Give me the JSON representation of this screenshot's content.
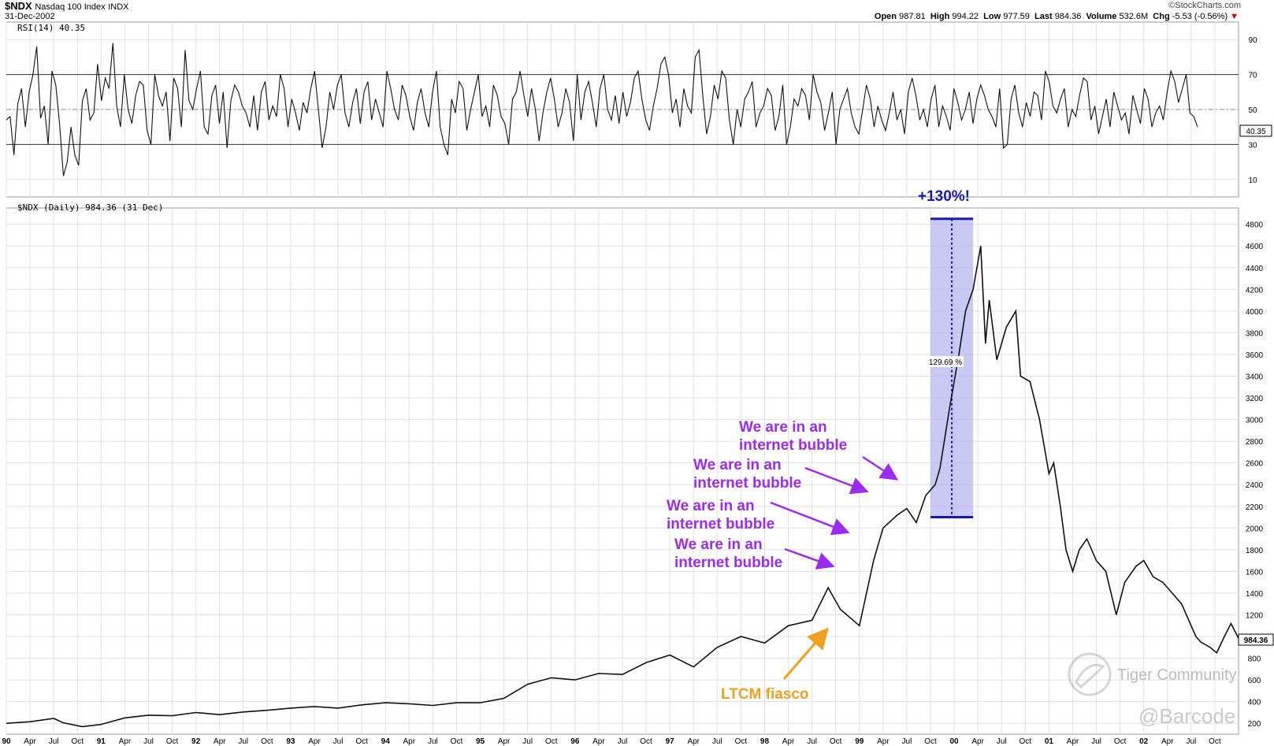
{
  "header": {
    "symbol": "$NDX",
    "name": "Nasdaq 100 Index",
    "exchange": "INDX",
    "date": "31-Dec-2002",
    "credit": "©StockCharts.com",
    "open_label": "Open",
    "open_value": "987.81",
    "high_label": "High",
    "high_value": "994.22",
    "low_label": "Low",
    "low_value": "977.59",
    "last_label": "Last",
    "last_value": "984.36",
    "volume_label": "Volume",
    "volume_value": "532.6M",
    "chg_label": "Chg",
    "chg_value": "-5.53 (-0.56%)"
  },
  "chart_data": [
    {
      "type": "line",
      "panel": "rsi",
      "label": "RSI(14) 40.35",
      "current_value_tag": "40.35",
      "y_ticks": [
        10,
        30,
        50,
        70,
        90
      ],
      "ylim": [
        0,
        100
      ],
      "reference_lines": [
        30,
        50,
        70
      ],
      "grid": true,
      "series": [
        {
          "values": [
            44,
            46,
            24,
            53,
            62,
            40,
            60,
            70,
            86,
            45,
            52,
            30,
            72,
            64,
            42,
            12,
            20,
            40,
            24,
            18,
            55,
            62,
            44,
            48,
            76,
            55,
            68,
            62,
            88,
            52,
            40,
            70,
            50,
            42,
            58,
            66,
            64,
            38,
            30,
            70,
            58,
            52,
            60,
            32,
            68,
            62,
            40,
            84,
            55,
            50,
            62,
            72,
            40,
            36,
            58,
            64,
            42,
            60,
            28,
            55,
            64,
            60,
            52,
            48,
            40,
            58,
            38,
            60,
            66,
            44,
            52,
            46,
            70,
            62,
            40,
            56,
            48,
            38,
            54,
            48,
            62,
            72,
            50,
            28,
            40,
            60,
            50,
            64,
            70,
            48,
            40,
            54,
            62,
            42,
            60,
            66,
            44,
            56,
            48,
            40,
            72,
            62,
            50,
            44,
            64,
            58,
            46,
            38,
            54,
            62,
            48,
            40,
            60,
            72,
            40,
            30,
            24,
            56,
            48,
            66,
            62,
            38,
            50,
            60,
            70,
            46,
            52,
            40,
            64,
            58,
            46,
            42,
            30,
            56,
            60,
            72,
            58,
            46,
            62,
            50,
            32,
            48,
            60,
            68,
            56,
            40,
            48,
            62,
            54,
            32,
            70,
            44,
            60,
            66,
            54,
            40,
            62,
            70,
            50,
            44,
            58,
            42,
            60,
            46,
            54,
            68,
            72,
            56,
            44,
            38,
            52,
            62,
            76,
            80,
            70,
            48,
            56,
            40,
            62,
            52,
            48,
            80,
            84,
            58,
            36,
            46,
            64,
            56,
            72,
            68,
            44,
            30,
            50,
            40,
            56,
            60,
            66,
            40,
            48,
            52,
            62,
            58,
            38,
            46,
            64,
            30,
            40,
            56,
            52,
            62,
            58,
            44,
            70,
            60,
            54,
            38,
            48,
            60,
            30,
            50,
            56,
            62,
            48,
            40,
            36,
            50,
            64,
            56,
            40,
            52,
            44,
            38,
            48,
            60,
            44,
            50,
            36,
            60,
            68,
            58,
            44,
            50,
            40,
            56,
            64,
            40,
            52,
            46,
            38,
            62,
            54,
            44,
            50,
            60,
            42,
            56,
            64,
            58,
            50,
            46,
            40,
            62,
            28,
            30,
            56,
            64,
            48,
            40,
            54,
            46,
            60,
            58,
            44,
            72,
            66,
            52,
            48,
            56,
            62,
            40,
            50,
            46,
            58,
            68,
            66,
            44,
            52,
            36,
            46,
            56,
            40,
            60,
            52,
            44,
            48,
            36,
            58,
            50,
            42,
            62,
            56,
            40,
            48,
            52,
            44,
            60,
            72,
            66,
            54,
            62,
            70,
            48,
            46,
            40
          ]
        }
      ]
    },
    {
      "type": "line",
      "panel": "price",
      "label": "$NDX (Daily) 984.36 (31 Dec)",
      "current_value_tag": "984.36",
      "x_ticks": [
        "90",
        "Apr",
        "Jul",
        "Oct",
        "91",
        "Apr",
        "Jul",
        "Oct",
        "92",
        "Apr",
        "Jul",
        "Oct",
        "93",
        "Apr",
        "Jul",
        "Oct",
        "94",
        "Apr",
        "Jul",
        "Oct",
        "95",
        "Apr",
        "Jul",
        "Oct",
        "96",
        "Apr",
        "Jul",
        "Oct",
        "97",
        "Apr",
        "Jul",
        "Oct",
        "98",
        "Apr",
        "Jul",
        "Oct",
        "99",
        "Apr",
        "Jul",
        "Oct",
        "00",
        "Apr",
        "Jul",
        "Oct",
        "01",
        "Apr",
        "Jul",
        "Oct",
        "02",
        "Apr",
        "Jul",
        "Oct"
      ],
      "y_ticks": [
        200,
        400,
        600,
        800,
        1000,
        1200,
        1400,
        1600,
        1800,
        2000,
        2200,
        2400,
        2600,
        2800,
        3000,
        3200,
        3400,
        3600,
        3800,
        4000,
        4200,
        4400,
        4600,
        4800
      ],
      "ylim": [
        100,
        4950
      ],
      "xlim": [
        1990.0,
        2003.0
      ],
      "grid": true,
      "series": [
        {
          "x": [
            1990.0,
            1990.25,
            1990.5,
            1990.6,
            1990.8,
            1991.0,
            1991.25,
            1991.5,
            1991.75,
            1992.0,
            1992.25,
            1992.5,
            1992.75,
            1993.0,
            1993.25,
            1993.5,
            1993.75,
            1994.0,
            1994.25,
            1994.5,
            1994.75,
            1995.0,
            1995.25,
            1995.5,
            1995.75,
            1996.0,
            1996.25,
            1996.5,
            1996.75,
            1997.0,
            1997.25,
            1997.5,
            1997.75,
            1998.0,
            1998.25,
            1998.5,
            1998.67,
            1998.8,
            1999.0,
            1999.15,
            1999.25,
            1999.4,
            1999.5,
            1999.6,
            1999.7,
            1999.8,
            1999.85,
            1999.95,
            2000.05,
            2000.12,
            2000.2,
            2000.28,
            2000.33,
            2000.37,
            2000.45,
            2000.55,
            2000.65,
            2000.7,
            2000.8,
            2000.9,
            2001.0,
            2001.05,
            2001.12,
            2001.18,
            2001.25,
            2001.32,
            2001.4,
            2001.5,
            2001.6,
            2001.71,
            2001.8,
            2001.92,
            2002.0,
            2002.1,
            2002.2,
            2002.3,
            2002.4,
            2002.5,
            2002.55,
            2002.6,
            2002.7,
            2002.77,
            2002.85,
            2002.92,
            2003.0
          ],
          "y": [
            200,
            215,
            245,
            205,
            170,
            190,
            250,
            275,
            270,
            300,
            280,
            305,
            320,
            340,
            355,
            340,
            370,
            390,
            380,
            365,
            390,
            390,
            430,
            560,
            620,
            600,
            660,
            650,
            760,
            830,
            720,
            900,
            1000,
            940,
            1100,
            1150,
            1450,
            1250,
            1100,
            1700,
            2000,
            2120,
            2180,
            2050,
            2300,
            2400,
            2550,
            3100,
            3600,
            4000,
            4200,
            4600,
            3700,
            4100,
            3550,
            3850,
            4000,
            3400,
            3350,
            3000,
            2500,
            2600,
            2200,
            1800,
            1600,
            1800,
            1900,
            1700,
            1600,
            1200,
            1500,
            1650,
            1700,
            1550,
            1500,
            1400,
            1300,
            1100,
            1000,
            950,
            900,
            850,
            1000,
            1120,
            984.36
          ]
        }
      ]
    }
  ],
  "annotations": {
    "highlight_label": "+130%!",
    "measure_label": "129.69 %",
    "bubble_line1": "We are in an",
    "bubble_line2": "internet bubble",
    "ltcm_label": "LTCM fiasco"
  },
  "watermark": {
    "brand": "Tiger Community",
    "handle": "@Barcode"
  },
  "colors": {
    "accent_purple": "#9b2bf0",
    "ltcm_orange": "#f0a020",
    "highlight_fill": "#b7b7f0",
    "highlight_border": "#1a1aa8",
    "rsi_fill": "#4d6e4d",
    "grid": "#e0e0e0"
  }
}
